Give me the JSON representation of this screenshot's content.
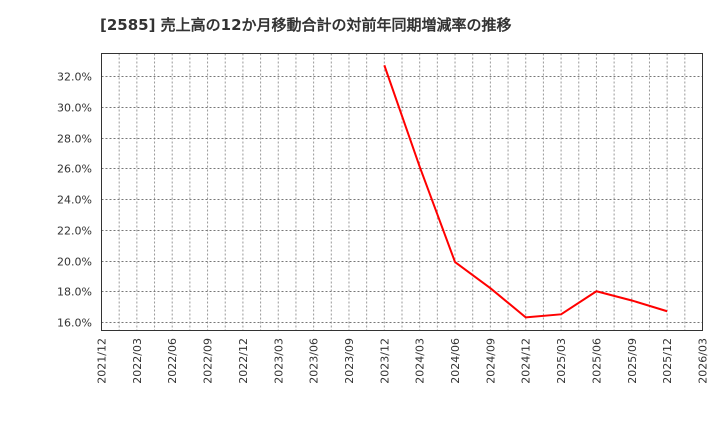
{
  "title": "[2585]  売上高の12か月移動合計の対前年同期増減率の推移",
  "chart_data": {
    "type": "line",
    "title": "[2585]  売上高の12か月移動合計の対前年同期増減率の推移",
    "xlabel": "",
    "ylabel": "",
    "x_tick_labels": [
      "2021/12",
      "2022/03",
      "2022/06",
      "2022/09",
      "2022/12",
      "2023/03",
      "2023/06",
      "2023/09",
      "2023/12",
      "2024/03",
      "2024/06",
      "2024/09",
      "2024/12",
      "2025/03",
      "2025/06",
      "2025/09",
      "2025/12",
      "2026/03"
    ],
    "y_tick_labels": [
      "16.0%",
      "18.0%",
      "20.0%",
      "22.0%",
      "24.0%",
      "26.0%",
      "28.0%",
      "30.0%",
      "32.0%"
    ],
    "y_ticks": [
      16,
      18,
      20,
      22,
      24,
      26,
      28,
      30,
      32
    ],
    "ylim": [
      15.4,
      33.5
    ],
    "grid": true,
    "legend": "none",
    "series": [
      {
        "name": "売上高12か月移動合計 対前年同期増減率",
        "color": "#ff0000",
        "x": [
          "2023/12",
          "2024/03",
          "2024/06",
          "2024/09",
          "2024/12",
          "2025/03",
          "2025/06",
          "2025/09",
          "2025/12"
        ],
        "values": [
          32.7,
          26.1,
          19.9,
          18.2,
          16.3,
          16.5,
          18.0,
          17.4,
          16.7
        ]
      }
    ]
  }
}
